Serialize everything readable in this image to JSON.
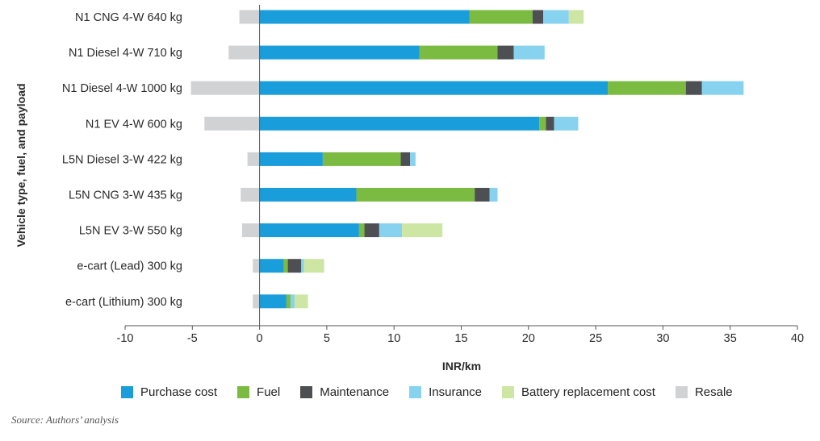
{
  "chart_data": {
    "type": "bar",
    "orientation": "horizontal",
    "stacked": true,
    "categories": [
      "N1 CNG 4-W 640 kg",
      "N1 Diesel 4-W 710 kg",
      "N1 Diesel 4-W 1000 kg",
      "N1 EV 4-W 600 kg",
      "L5N Diesel 3-W 422 kg",
      "L5N CNG 3-W 435 kg",
      "L5N EV 3-W 550 kg",
      "e-cart (Lead) 300 kg",
      "e-cart (Lithium) 300 kg"
    ],
    "series": [
      {
        "name": "Purchase cost",
        "color": "#1a9edb",
        "values": [
          15.6,
          11.9,
          25.9,
          20.8,
          4.7,
          7.2,
          7.4,
          1.8,
          2.0
        ]
      },
      {
        "name": "Fuel",
        "color": "#7cbb42",
        "values": [
          4.7,
          5.8,
          5.8,
          0.5,
          5.8,
          8.8,
          0.4,
          0.3,
          0.3
        ]
      },
      {
        "name": "Maintenance",
        "color": "#4d4f53",
        "values": [
          0.8,
          1.2,
          1.2,
          0.6,
          0.7,
          1.1,
          1.1,
          1.0,
          0.0
        ]
      },
      {
        "name": "Insurance",
        "color": "#86d2ef",
        "values": [
          1.9,
          2.3,
          3.1,
          1.8,
          0.4,
          0.6,
          1.7,
          0.2,
          0.3
        ]
      },
      {
        "name": "Battery replacement cost",
        "color": "#cde6a3",
        "values": [
          1.1,
          0.0,
          0.0,
          0.0,
          0.0,
          0.0,
          3.0,
          1.5,
          1.0
        ]
      },
      {
        "name": "Resale",
        "color": "#d1d2d4",
        "values": [
          -1.5,
          -2.3,
          -5.1,
          -4.1,
          -0.9,
          -1.4,
          -1.3,
          -0.5,
          -0.5
        ]
      }
    ],
    "xlim": [
      -10,
      40
    ],
    "xticks": [
      "-10",
      "-5",
      "0",
      "5",
      "10",
      "15",
      "20",
      "25",
      "30",
      "35",
      "40"
    ],
    "xlabel": "INR/km",
    "ylabel": "Vehicle type, fuel, and payload",
    "grid": false,
    "legend": "bottom"
  },
  "source": "Source: Authors’ analysis"
}
